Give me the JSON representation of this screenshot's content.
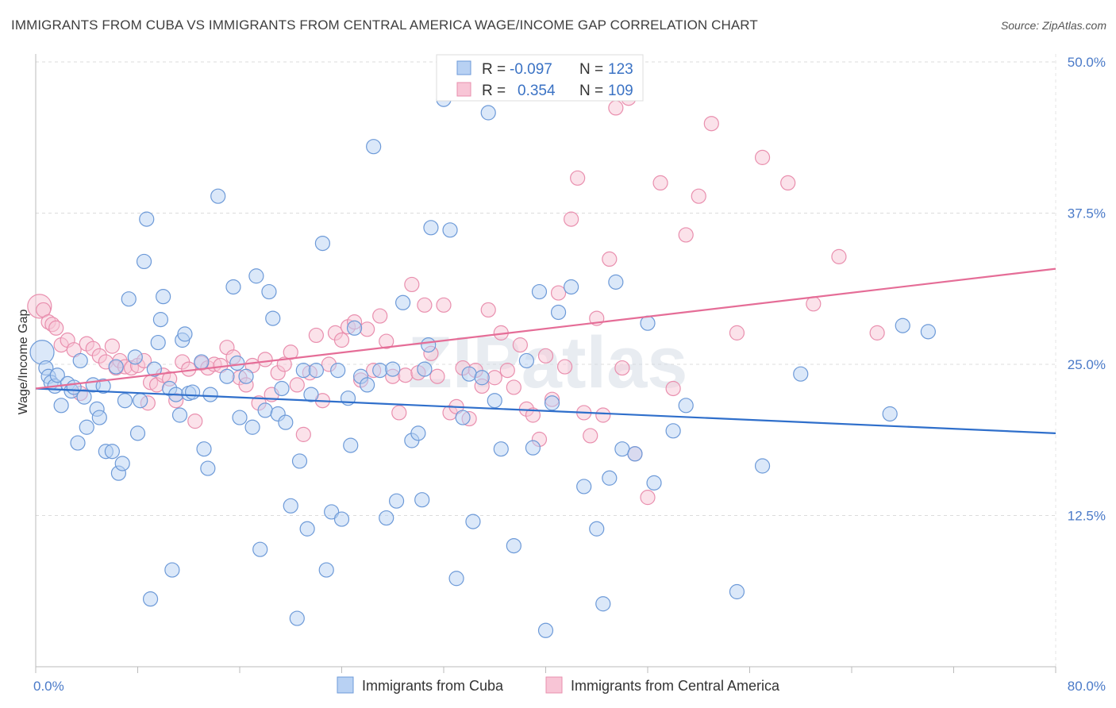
{
  "header": {
    "title": "IMMIGRANTS FROM CUBA VS IMMIGRANTS FROM CENTRAL AMERICA WAGE/INCOME GAP CORRELATION CHART",
    "source": "Source: ZipAtlas.com"
  },
  "watermark": "ZIPatlas",
  "colors": {
    "cuba_fill": "#b8d1f3",
    "cuba_stroke": "#6d9ad8",
    "cuba_line": "#2f6fcb",
    "ca_fill": "#f8c5d6",
    "ca_stroke": "#e98fae",
    "ca_line": "#e56d97",
    "tick_text": "#4a7ac8"
  },
  "stats": {
    "r_label": "R =",
    "n_label": "N =",
    "rows": [
      {
        "r": "-0.097",
        "n": "123"
      },
      {
        "r": "0.354",
        "n": "109"
      }
    ]
  },
  "chart_data": {
    "type": "scatter",
    "ylabel": "Wage/Income Gap",
    "xlim": [
      0,
      80
    ],
    "ylim": [
      0,
      50
    ],
    "x_tick_labels": [
      "0.0%",
      "80.0%"
    ],
    "y_ticks": [
      {
        "value": 12.5,
        "label": "12.5%"
      },
      {
        "value": 25.0,
        "label": "25.0%"
      },
      {
        "value": 37.5,
        "label": "37.5%"
      },
      {
        "value": 50.0,
        "label": "50.0%"
      }
    ],
    "grid": true,
    "legend_position": "bottom-center",
    "series": [
      {
        "name": "Immigrants from Cuba",
        "trend": {
          "x": [
            0,
            80
          ],
          "y": [
            23.0,
            19.3
          ]
        },
        "points": [
          [
            0.5,
            26.0
          ],
          [
            0.8,
            24.7
          ],
          [
            1.0,
            24.0
          ],
          [
            1.2,
            23.5
          ],
          [
            1.5,
            23.2
          ],
          [
            1.7,
            24.1
          ],
          [
            2.0,
            21.6
          ],
          [
            2.5,
            23.4
          ],
          [
            2.8,
            22.8
          ],
          [
            3.0,
            23.1
          ],
          [
            3.3,
            18.5
          ],
          [
            3.5,
            25.3
          ],
          [
            3.8,
            22.3
          ],
          [
            4.0,
            19.8
          ],
          [
            4.5,
            23.3
          ],
          [
            4.8,
            21.3
          ],
          [
            5.0,
            20.6
          ],
          [
            5.3,
            23.2
          ],
          [
            5.5,
            17.8
          ],
          [
            6.0,
            17.8
          ],
          [
            6.3,
            24.8
          ],
          [
            6.5,
            16.0
          ],
          [
            6.8,
            16.8
          ],
          [
            7.0,
            22.0
          ],
          [
            7.3,
            30.4
          ],
          [
            7.8,
            25.6
          ],
          [
            8.0,
            19.3
          ],
          [
            8.2,
            22.0
          ],
          [
            8.5,
            33.5
          ],
          [
            8.7,
            37.0
          ],
          [
            9.0,
            5.6
          ],
          [
            9.3,
            24.6
          ],
          [
            9.6,
            26.8
          ],
          [
            9.8,
            28.7
          ],
          [
            10.0,
            30.6
          ],
          [
            10.5,
            23.0
          ],
          [
            10.7,
            8.0
          ],
          [
            11.0,
            22.5
          ],
          [
            11.3,
            20.8
          ],
          [
            11.5,
            27.0
          ],
          [
            11.7,
            27.5
          ],
          [
            12.0,
            22.6
          ],
          [
            12.3,
            22.7
          ],
          [
            13.0,
            25.2
          ],
          [
            13.2,
            18.0
          ],
          [
            13.5,
            16.4
          ],
          [
            13.7,
            22.5
          ],
          [
            14.3,
            38.9
          ],
          [
            15.0,
            24.0
          ],
          [
            15.5,
            31.4
          ],
          [
            15.8,
            25.1
          ],
          [
            16.0,
            20.6
          ],
          [
            16.5,
            24.0
          ],
          [
            17.0,
            19.8
          ],
          [
            17.3,
            32.3
          ],
          [
            17.6,
            9.7
          ],
          [
            18.0,
            21.2
          ],
          [
            18.3,
            31.0
          ],
          [
            18.6,
            28.8
          ],
          [
            19.0,
            20.9
          ],
          [
            19.3,
            23.0
          ],
          [
            19.6,
            20.2
          ],
          [
            20.0,
            13.3
          ],
          [
            20.5,
            4.0
          ],
          [
            20.7,
            17.0
          ],
          [
            21.0,
            24.5
          ],
          [
            21.3,
            11.4
          ],
          [
            21.6,
            22.5
          ],
          [
            22.0,
            24.5
          ],
          [
            22.5,
            35.0
          ],
          [
            22.8,
            8.0
          ],
          [
            23.2,
            12.8
          ],
          [
            23.7,
            24.5
          ],
          [
            24.0,
            12.2
          ],
          [
            24.5,
            22.2
          ],
          [
            24.7,
            18.3
          ],
          [
            25.0,
            28.0
          ],
          [
            25.5,
            24.0
          ],
          [
            26.0,
            23.3
          ],
          [
            26.5,
            43.0
          ],
          [
            27.0,
            24.5
          ],
          [
            27.5,
            12.3
          ],
          [
            28.0,
            24.6
          ],
          [
            28.3,
            13.7
          ],
          [
            28.8,
            30.1
          ],
          [
            29.5,
            18.7
          ],
          [
            30.0,
            19.3
          ],
          [
            30.3,
            13.8
          ],
          [
            30.5,
            24.6
          ],
          [
            30.8,
            26.6
          ],
          [
            31.0,
            36.3
          ],
          [
            32.0,
            46.9
          ],
          [
            32.5,
            36.1
          ],
          [
            33.0,
            7.3
          ],
          [
            33.5,
            20.6
          ],
          [
            34.0,
            24.2
          ],
          [
            34.3,
            12.0
          ],
          [
            35.0,
            23.9
          ],
          [
            35.5,
            45.8
          ],
          [
            36.0,
            22.0
          ],
          [
            36.5,
            18.0
          ],
          [
            37.5,
            10.0
          ],
          [
            38.5,
            25.3
          ],
          [
            39.0,
            18.1
          ],
          [
            39.5,
            31.0
          ],
          [
            40.0,
            3.0
          ],
          [
            40.5,
            21.8
          ],
          [
            41.0,
            29.3
          ],
          [
            42.0,
            31.4
          ],
          [
            43.0,
            14.9
          ],
          [
            44.0,
            11.4
          ],
          [
            44.5,
            5.2
          ],
          [
            45.0,
            15.6
          ],
          [
            45.5,
            31.8
          ],
          [
            46.0,
            18.0
          ],
          [
            47.0,
            17.6
          ],
          [
            48.0,
            28.4
          ],
          [
            48.5,
            15.2
          ],
          [
            50.0,
            19.5
          ],
          [
            51.0,
            21.6
          ],
          [
            55.0,
            6.2
          ],
          [
            57.0,
            16.6
          ],
          [
            60.0,
            24.2
          ],
          [
            67.0,
            20.9
          ],
          [
            68.0,
            28.2
          ],
          [
            70.0,
            27.7
          ]
        ]
      },
      {
        "name": "Immigrants from Central America",
        "trend": {
          "x": [
            0,
            80
          ],
          "y": [
            23.0,
            32.9
          ]
        },
        "points": [
          [
            0.3,
            29.8
          ],
          [
            0.6,
            29.5
          ],
          [
            1.0,
            28.5
          ],
          [
            1.3,
            28.3
          ],
          [
            1.6,
            28.0
          ],
          [
            2.0,
            26.6
          ],
          [
            2.5,
            27.0
          ],
          [
            3.0,
            26.2
          ],
          [
            3.5,
            22.6
          ],
          [
            4.0,
            26.7
          ],
          [
            4.5,
            26.3
          ],
          [
            5.0,
            25.7
          ],
          [
            5.5,
            25.2
          ],
          [
            6.0,
            26.5
          ],
          [
            6.3,
            24.7
          ],
          [
            6.6,
            25.3
          ],
          [
            7.0,
            24.8
          ],
          [
            7.5,
            24.7
          ],
          [
            8.0,
            24.9
          ],
          [
            8.5,
            25.3
          ],
          [
            8.8,
            21.8
          ],
          [
            9.0,
            23.5
          ],
          [
            9.5,
            23.3
          ],
          [
            10.0,
            24.1
          ],
          [
            10.5,
            23.8
          ],
          [
            11.0,
            22.0
          ],
          [
            11.5,
            25.2
          ],
          [
            12.0,
            24.6
          ],
          [
            12.5,
            20.3
          ],
          [
            13.0,
            25.1
          ],
          [
            13.5,
            24.7
          ],
          [
            14.0,
            25.0
          ],
          [
            14.5,
            24.9
          ],
          [
            15.0,
            26.4
          ],
          [
            15.5,
            25.6
          ],
          [
            16.0,
            23.9
          ],
          [
            16.5,
            23.3
          ],
          [
            17.0,
            24.9
          ],
          [
            17.5,
            21.8
          ],
          [
            18.0,
            25.4
          ],
          [
            18.5,
            22.5
          ],
          [
            19.0,
            24.3
          ],
          [
            19.5,
            25.0
          ],
          [
            20.0,
            26.0
          ],
          [
            20.5,
            23.3
          ],
          [
            21.0,
            19.2
          ],
          [
            21.5,
            24.3
          ],
          [
            22.0,
            27.4
          ],
          [
            22.5,
            22.0
          ],
          [
            23.0,
            25.0
          ],
          [
            23.5,
            27.6
          ],
          [
            24.0,
            27.0
          ],
          [
            24.5,
            28.1
          ],
          [
            25.0,
            28.5
          ],
          [
            25.5,
            23.7
          ],
          [
            26.0,
            27.9
          ],
          [
            26.5,
            24.5
          ],
          [
            27.0,
            29.0
          ],
          [
            27.5,
            26.9
          ],
          [
            28.0,
            24.0
          ],
          [
            28.5,
            21.0
          ],
          [
            29.0,
            24.1
          ],
          [
            29.5,
            31.6
          ],
          [
            30.0,
            24.3
          ],
          [
            30.5,
            29.9
          ],
          [
            31.0,
            25.9
          ],
          [
            31.5,
            24.0
          ],
          [
            32.0,
            29.9
          ],
          [
            32.5,
            21.0
          ],
          [
            33.0,
            21.5
          ],
          [
            33.5,
            24.7
          ],
          [
            34.0,
            20.5
          ],
          [
            34.5,
            24.5
          ],
          [
            35.0,
            23.2
          ],
          [
            35.5,
            29.5
          ],
          [
            36.0,
            23.9
          ],
          [
            36.5,
            27.6
          ],
          [
            37.0,
            24.5
          ],
          [
            37.5,
            23.1
          ],
          [
            38.0,
            26.6
          ],
          [
            38.5,
            21.3
          ],
          [
            39.0,
            20.8
          ],
          [
            39.5,
            18.8
          ],
          [
            40.0,
            25.7
          ],
          [
            40.5,
            22.1
          ],
          [
            41.0,
            30.9
          ],
          [
            41.5,
            24.8
          ],
          [
            42.0,
            37.0
          ],
          [
            42.5,
            40.4
          ],
          [
            43.0,
            21.0
          ],
          [
            43.5,
            19.1
          ],
          [
            44.0,
            28.8
          ],
          [
            44.5,
            20.8
          ],
          [
            45.0,
            33.7
          ],
          [
            45.5,
            46.2
          ],
          [
            46.0,
            24.7
          ],
          [
            46.5,
            47.0
          ],
          [
            47.0,
            17.6
          ],
          [
            48.0,
            14.0
          ],
          [
            49.0,
            40.0
          ],
          [
            50.0,
            23.0
          ],
          [
            51.0,
            35.7
          ],
          [
            52.0,
            38.9
          ],
          [
            53.0,
            44.9
          ],
          [
            55.0,
            27.6
          ],
          [
            57.0,
            42.1
          ],
          [
            59.0,
            40.0
          ],
          [
            61.0,
            30.0
          ],
          [
            63.0,
            33.9
          ],
          [
            66.0,
            27.6
          ]
        ]
      }
    ]
  }
}
